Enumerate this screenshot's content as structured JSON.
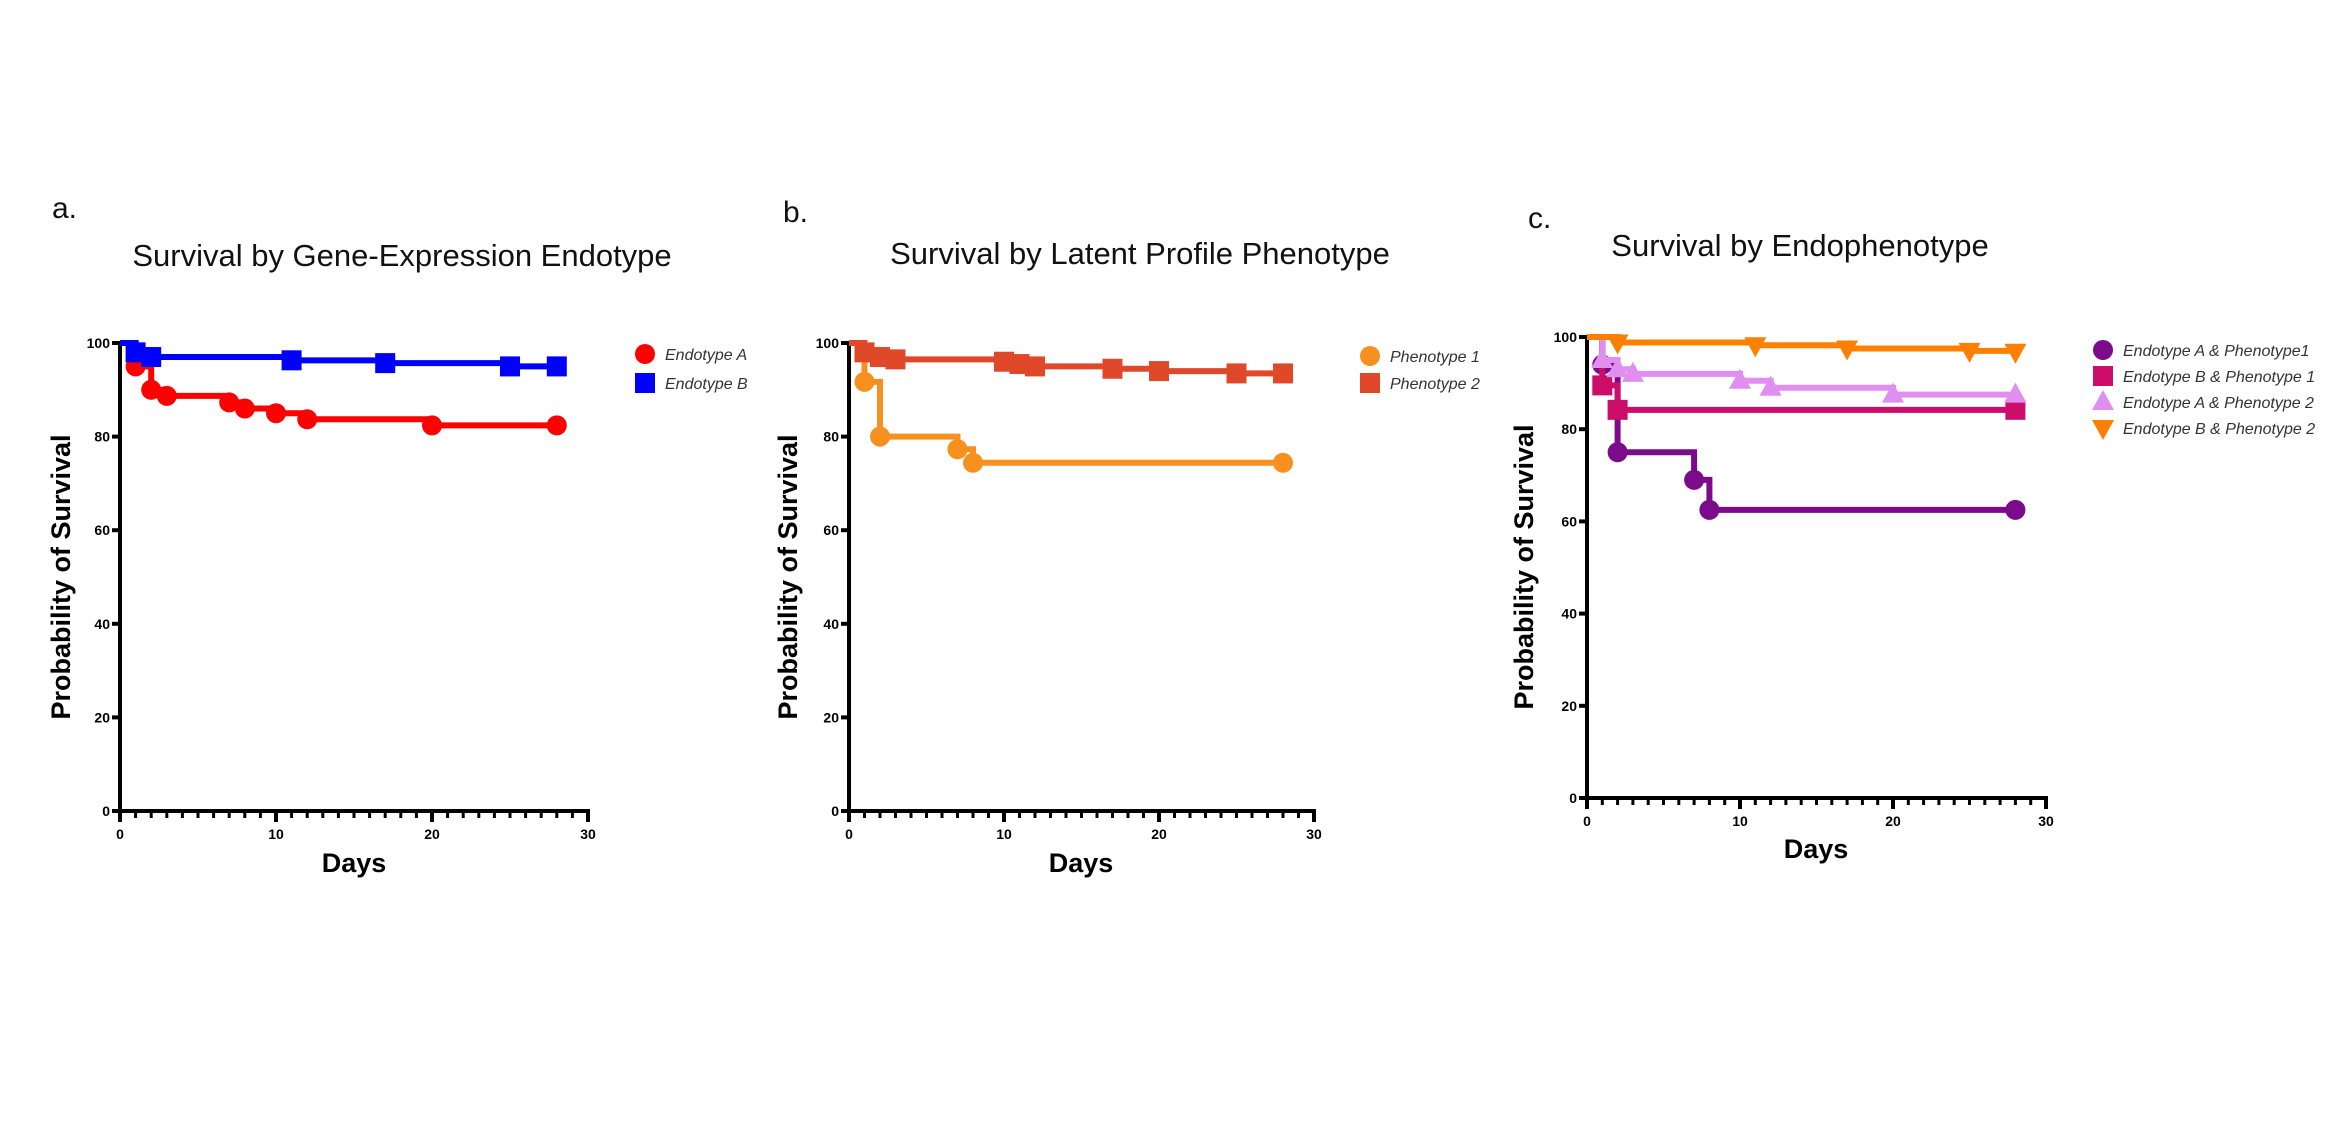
{
  "chart_data": [
    {
      "type": "line",
      "panel": "a.",
      "title": "Survival by Gene-Expression Endotype",
      "xlabel": "Days",
      "ylabel": "Probability of Survival",
      "xlim": [
        0,
        30
      ],
      "ylim": [
        0,
        100
      ],
      "xticks": [
        "0",
        "10",
        "20",
        "30"
      ],
      "yticks": [
        "0",
        "20",
        "40",
        "60",
        "80",
        "100"
      ],
      "grid": false,
      "legend_position": "right",
      "series": [
        {
          "name": "Endotype A",
          "color": "#ff0000",
          "marker": "circle",
          "points": [
            [
              0,
              100
            ],
            [
              1,
              95
            ],
            [
              2,
              90
            ],
            [
              3,
              88.7
            ],
            [
              7,
              87.3
            ],
            [
              8,
              86
            ],
            [
              10,
              85
            ],
            [
              12,
              83.7
            ],
            [
              20,
              82.4
            ],
            [
              28,
              82.4
            ]
          ]
        },
        {
          "name": "Endotype B",
          "color": "#0000ff",
          "marker": "square",
          "points": [
            [
              0,
              100
            ],
            [
              1,
              98
            ],
            [
              2,
              97
            ],
            [
              11,
              96.3
            ],
            [
              17,
              95.7
            ],
            [
              25,
              95
            ],
            [
              28,
              95
            ]
          ]
        }
      ]
    },
    {
      "type": "line",
      "panel": "b.",
      "title": "Survival by Latent Profile Phenotype",
      "xlabel": "Days",
      "ylabel": "Probability of Survival",
      "xlim": [
        0,
        30
      ],
      "ylim": [
        0,
        100
      ],
      "xticks": [
        "0",
        "10",
        "20",
        "30"
      ],
      "yticks": [
        "0",
        "20",
        "40",
        "60",
        "80",
        "100"
      ],
      "grid": false,
      "legend_position": "right",
      "series": [
        {
          "name": "Phenotype 1",
          "color": "#f7901e",
          "marker": "circle",
          "points": [
            [
              0,
              100
            ],
            [
              1,
              91.7
            ],
            [
              2,
              80
            ],
            [
              7,
              77.3
            ],
            [
              8,
              74.4
            ],
            [
              28,
              74.4
            ]
          ]
        },
        {
          "name": "Phenotype 2",
          "color": "#e0482a",
          "marker": "square",
          "points": [
            [
              0,
              100
            ],
            [
              1,
              98
            ],
            [
              2,
              97
            ],
            [
              3,
              96.5
            ],
            [
              10,
              96
            ],
            [
              11,
              95.5
            ],
            [
              12,
              95
            ],
            [
              17,
              94.5
            ],
            [
              20,
              94
            ],
            [
              25,
              93.5
            ],
            [
              28,
              93.5
            ]
          ]
        }
      ]
    },
    {
      "type": "line",
      "panel": "c.",
      "title": "Survival by Endophenotype",
      "xlabel": "Days",
      "ylabel": "Probability of Survival",
      "xlim": [
        0,
        30
      ],
      "ylim": [
        0,
        100
      ],
      "xticks": [
        "0",
        "10",
        "20",
        "30"
      ],
      "yticks": [
        "0",
        "20",
        "40",
        "60",
        "80",
        "100"
      ],
      "grid": false,
      "legend_position": "right",
      "series": [
        {
          "name": "Endotype A & Phenotype1",
          "color": "#7b0b8a",
          "marker": "circle",
          "points": [
            [
              0,
              100
            ],
            [
              1,
              94
            ],
            [
              2,
              75
            ],
            [
              7,
              69
            ],
            [
              8,
              62.5
            ],
            [
              28,
              62.5
            ]
          ]
        },
        {
          "name": "Endotype B & Phenotype 1",
          "color": "#cc0d6a",
          "marker": "square",
          "points": [
            [
              0,
              100
            ],
            [
              1,
              89.5
            ],
            [
              2,
              84.2
            ],
            [
              28,
              84.2
            ]
          ]
        },
        {
          "name": "Endotype A & Phenotype 2",
          "color": "#e08ef0",
          "marker": "triangle-up",
          "points": [
            [
              0,
              100
            ],
            [
              1,
              95
            ],
            [
              2,
              93
            ],
            [
              3,
              92
            ],
            [
              10,
              90.5
            ],
            [
              12,
              89
            ],
            [
              20,
              87.5
            ],
            [
              28,
              87.5
            ]
          ]
        },
        {
          "name": "Endotype B & Phenotype 2",
          "color": "#ff8000",
          "marker": "triangle-down",
          "points": [
            [
              0,
              100
            ],
            [
              2,
              98.8
            ],
            [
              11,
              98.2
            ],
            [
              17,
              97.5
            ],
            [
              25,
              97
            ],
            [
              28,
              96.8
            ]
          ]
        }
      ]
    }
  ]
}
